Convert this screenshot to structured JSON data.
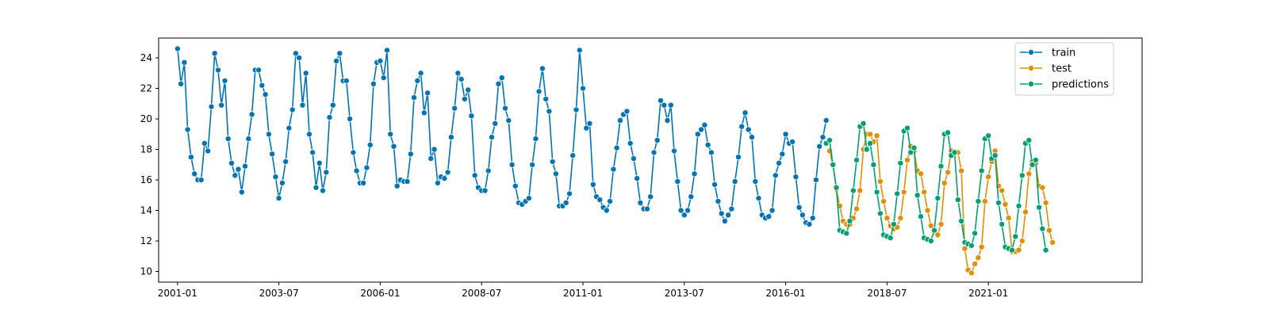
{
  "chart_data": {
    "type": "line",
    "title": "",
    "xlabel": "",
    "ylabel": "",
    "ylim": [
      9.3,
      25.3
    ],
    "xlim": [
      "2000-01",
      "2023-12"
    ],
    "x_ticks": [
      "2001-01",
      "2003-07",
      "2006-01",
      "2008-07",
      "2011-01",
      "2013-07",
      "2016-01",
      "2018-07",
      "2021-01"
    ],
    "y_ticks": [
      10,
      12,
      14,
      16,
      18,
      20,
      22,
      24
    ],
    "grid": false,
    "legend_position": "top-right",
    "markers": "circle",
    "series": [
      {
        "name": "train",
        "color": "#0173b2",
        "start": "2001-01",
        "values": [
          24.6,
          22.3,
          23.7,
          19.3,
          17.5,
          16.4,
          16.0,
          16.0,
          18.4,
          17.9,
          20.8,
          24.3,
          23.2,
          20.9,
          22.5,
          18.7,
          17.1,
          16.3,
          16.7,
          15.2,
          16.9,
          18.7,
          20.3,
          23.2,
          23.2,
          22.2,
          21.6,
          19.0,
          17.7,
          16.2,
          14.8,
          15.8,
          17.2,
          19.4,
          20.6,
          24.3,
          24.0,
          20.9,
          23.0,
          19.0,
          17.8,
          15.5,
          17.1,
          15.3,
          16.5,
          20.1,
          20.9,
          23.8,
          24.3,
          22.5,
          22.5,
          20.0,
          17.8,
          16.6,
          15.8,
          15.8,
          16.8,
          18.3,
          22.3,
          23.7,
          23.8,
          22.7,
          24.5,
          19.0,
          18.2,
          15.6,
          16.0,
          15.9,
          15.9,
          17.7,
          21.4,
          22.5,
          23.0,
          20.4,
          21.7,
          17.4,
          18.0,
          15.8,
          16.2,
          16.1,
          16.5,
          18.8,
          20.7,
          23.0,
          22.6,
          21.3,
          21.9,
          20.2,
          16.3,
          15.5,
          15.3,
          15.3,
          16.6,
          18.8,
          19.7,
          22.3,
          22.7,
          20.7,
          19.9,
          17.0,
          15.6,
          14.5,
          14.4,
          14.6,
          14.8,
          17.0,
          18.7,
          21.8,
          23.3,
          21.3,
          20.5,
          17.2,
          16.4,
          14.3,
          14.3,
          14.5,
          15.1,
          17.6,
          20.6,
          24.5,
          22.0,
          19.4,
          19.7,
          15.7,
          14.9,
          14.7,
          14.2,
          14.0,
          14.6,
          16.7,
          18.1,
          19.9,
          20.3,
          20.5,
          18.4,
          17.4,
          16.1,
          14.5,
          14.1,
          14.1,
          14.9,
          17.8,
          18.6,
          21.2,
          20.9,
          19.9,
          20.9,
          17.9,
          15.9,
          14.0,
          13.7,
          14.0,
          14.9,
          16.4,
          19.0,
          19.3,
          19.6,
          18.3,
          17.8,
          15.7,
          14.6,
          13.8,
          13.3,
          13.7,
          14.1,
          15.9,
          17.5,
          19.5,
          20.4,
          19.3,
          18.8,
          15.9,
          14.8,
          13.7,
          13.5,
          13.6,
          14.0,
          16.3,
          17.1,
          17.7,
          19.0,
          18.4,
          18.5,
          16.2,
          14.2,
          13.7,
          13.2,
          13.1,
          13.5,
          16.0,
          18.2,
          18.8,
          19.9
        ]
      },
      {
        "name": "test",
        "color": "#de8f05",
        "start": "2017-02",
        "values": [
          17.9,
          17.0,
          15.4,
          14.3,
          13.3,
          13.1,
          13.1,
          13.5,
          14.1,
          15.3,
          18.0,
          19.0,
          19.0,
          18.5,
          18.9,
          15.9,
          14.6,
          13.5,
          13.0,
          12.8,
          12.9,
          13.5,
          15.2,
          17.3,
          18.2,
          17.9,
          16.6,
          16.4,
          15.2,
          14.0,
          13.0,
          12.6,
          12.4,
          13.1,
          15.8,
          16.5,
          17.9,
          17.8,
          17.8,
          16.6,
          11.5,
          10.1,
          9.9,
          10.5,
          10.9,
          11.6,
          14.6,
          16.2,
          17.2,
          17.9,
          15.6,
          15.3,
          14.4,
          13.5,
          11.3,
          11.3,
          11.4,
          12.0,
          13.9,
          16.4,
          17.2,
          17.1,
          15.6,
          15.5,
          14.5,
          12.7,
          11.9
        ]
      },
      {
        "name": "predictions",
        "color": "#029e73",
        "start": "2017-01",
        "values": [
          18.4,
          18.6,
          17.0,
          15.5,
          12.7,
          12.6,
          12.5,
          13.3,
          15.3,
          17.3,
          19.5,
          19.7,
          18.0,
          18.4,
          17.0,
          15.2,
          13.8,
          12.4,
          12.3,
          12.2,
          13.1,
          15.1,
          17.1,
          19.2,
          19.4,
          17.8,
          18.1,
          15.0,
          13.6,
          12.2,
          12.1,
          12.0,
          12.7,
          14.8,
          16.9,
          19.0,
          19.1,
          17.6,
          17.8,
          14.7,
          13.3,
          11.9,
          11.8,
          11.7,
          12.5,
          14.6,
          16.6,
          18.7,
          18.9,
          17.4,
          17.6,
          14.5,
          13.1,
          11.6,
          11.5,
          11.4,
          12.3,
          14.3,
          16.3,
          18.4,
          18.6,
          17.0,
          17.3,
          14.2,
          12.8,
          11.4
        ]
      }
    ]
  }
}
